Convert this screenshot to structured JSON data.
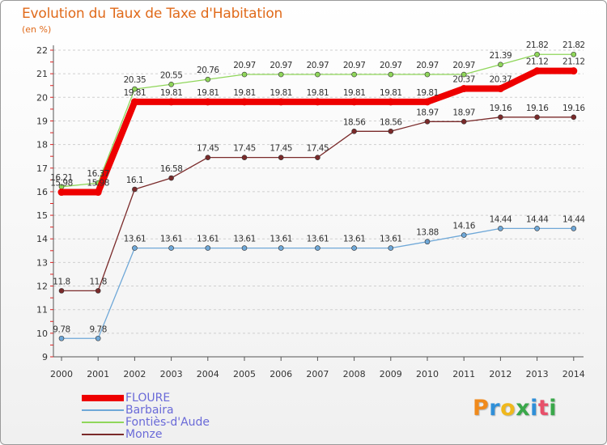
{
  "title": "Evolution du Taux de Taxe d'Habitation",
  "subtitle": "(en %)",
  "logo": {
    "letters": [
      {
        "ch": "P",
        "color": "#f08a1c"
      },
      {
        "ch": "r",
        "color": "#2f8fd8"
      },
      {
        "ch": "o",
        "color": "#f0b81c"
      },
      {
        "ch": "x",
        "color": "#3aa84a"
      },
      {
        "ch": "i",
        "color": "#2f8fd8"
      },
      {
        "ch": "t",
        "color": "#e8506a"
      },
      {
        "ch": "i",
        "color": "#3aa84a"
      }
    ]
  },
  "chart_data": {
    "type": "line",
    "title": "Evolution du Taux de Taxe d'Habitation",
    "ylabel": "(en %)",
    "xlabel": "",
    "x": [
      "2000",
      "2001",
      "2002",
      "2003",
      "2004",
      "2005",
      "2006",
      "2007",
      "2008",
      "2009",
      "2010",
      "2011",
      "2012",
      "2013",
      "2014"
    ],
    "ylim": [
      9,
      22
    ],
    "yticks": [
      9,
      10,
      11,
      12,
      13,
      14,
      15,
      16,
      17,
      18,
      19,
      20,
      21,
      22
    ],
    "grid": "horizontal",
    "legend_position": "bottom-left",
    "series": [
      {
        "name": "FLOURE",
        "color": "#ee0000",
        "emphasis": true,
        "values": [
          15.98,
          15.98,
          19.81,
          19.81,
          19.81,
          19.81,
          19.81,
          19.81,
          19.81,
          19.81,
          19.81,
          20.37,
          20.37,
          21.12,
          21.12
        ],
        "labels": [
          "15.98",
          "15.98",
          "19.81",
          "19.81",
          "19.81",
          "19.81",
          "19.81",
          "19.81",
          "19.81",
          "19.81",
          "19.81",
          "20.37",
          "20.37",
          "21.12",
          "21.12"
        ]
      },
      {
        "name": "Barbaira",
        "color": "#6fa8d8",
        "emphasis": false,
        "values": [
          9.78,
          9.78,
          13.61,
          13.61,
          13.61,
          13.61,
          13.61,
          13.61,
          13.61,
          13.61,
          13.88,
          14.16,
          14.44,
          14.44,
          14.44
        ],
        "labels": [
          "9.78",
          "9.78",
          "13.61",
          "13.61",
          "13.61",
          "13.61",
          "13.61",
          "13.61",
          "13.61",
          "13.61",
          "13.88",
          "14.16",
          "14.44",
          "14.44",
          "14.44"
        ]
      },
      {
        "name": "Fontiès-d'Aude",
        "color": "#8fd65a",
        "emphasis": false,
        "values": [
          16.21,
          16.37,
          20.35,
          20.55,
          20.76,
          20.97,
          20.97,
          20.97,
          20.97,
          20.97,
          20.97,
          20.97,
          21.39,
          21.82,
          21.82
        ],
        "labels": [
          "16.21",
          "16.37",
          "20.35",
          "20.55",
          "20.76",
          "20.97",
          "20.97",
          "20.97",
          "20.97",
          "20.97",
          "20.97",
          "20.97",
          "21.39",
          "21.82",
          "21.82"
        ]
      },
      {
        "name": "Monze",
        "color": "#7a2a2a",
        "emphasis": false,
        "values": [
          11.8,
          11.8,
          16.1,
          16.58,
          17.45,
          17.45,
          17.45,
          17.45,
          18.56,
          18.56,
          18.97,
          18.97,
          19.16,
          19.16,
          19.16
        ],
        "labels": [
          "11.8",
          "11.8",
          "16.1",
          "16.58",
          "17.45",
          "17.45",
          "17.45",
          "17.45",
          "18.56",
          "18.56",
          "18.97",
          "18.97",
          "19.16",
          "19.16",
          "19.16"
        ]
      }
    ]
  }
}
